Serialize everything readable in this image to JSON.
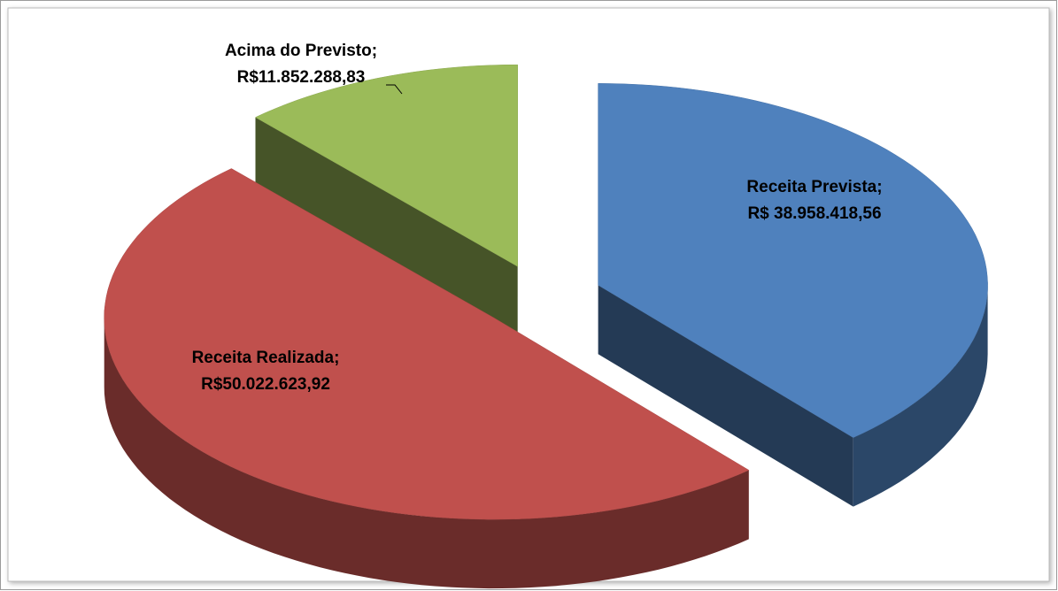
{
  "chart_data": {
    "type": "pie",
    "categories": [
      "Receita Prevista;",
      "Receita Realizada;",
      "Acima do Previsto;"
    ],
    "values": [
      38958418.56,
      50022623.92,
      11852288.83
    ],
    "value_labels": [
      "R$ 38.958.418,56",
      "R$50.022.623,92",
      "R$11.852.288,83"
    ],
    "colors": [
      "#4f81bd",
      "#c0504d",
      "#9bbb59"
    ]
  }
}
